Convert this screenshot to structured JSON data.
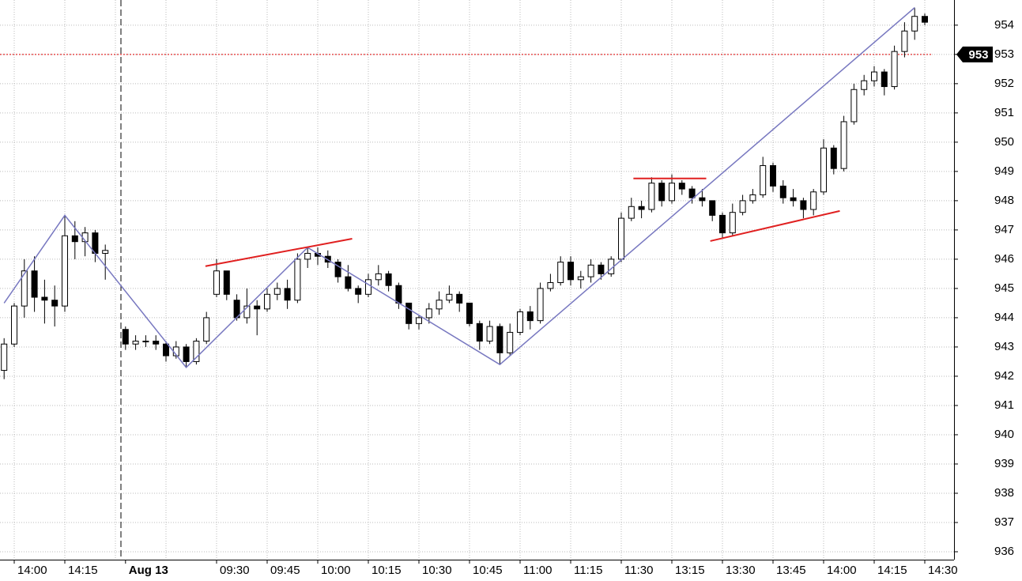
{
  "chart_data": {
    "type": "candlestick",
    "categories": [
      null,
      "14:00",
      null,
      null,
      null,
      null,
      "14:15",
      null,
      null,
      null,
      null,
      null,
      "Aug 13",
      null,
      null,
      null,
      null,
      null,
      null,
      null,
      null,
      "09:30",
      null,
      null,
      null,
      null,
      "09:45",
      null,
      null,
      null,
      null,
      "10:00",
      null,
      null,
      null,
      null,
      "10:15",
      null,
      null,
      null,
      null,
      "10:30",
      null,
      null,
      null,
      null,
      "10:45",
      null,
      null,
      null,
      null,
      "11:00",
      null,
      null,
      null,
      null,
      "11:15",
      null,
      null,
      null,
      null,
      "11:30",
      null,
      null,
      null,
      null,
      "13:15",
      null,
      null,
      null,
      null,
      "13:30",
      null,
      null,
      null,
      null,
      "13:45",
      null,
      null,
      null,
      null,
      "14:00",
      null,
      null,
      null,
      null,
      "14:15",
      null,
      null,
      null,
      null,
      "14:30"
    ],
    "open": [
      942.2,
      943.1,
      944.4,
      945.6,
      944.7,
      944.6,
      944.4,
      946.8,
      946.6,
      946.9,
      946.2,
      null,
      943.6,
      943.1,
      943.2,
      943.2,
      943.1,
      942.7,
      943.0,
      942.5,
      943.2,
      944.8,
      945.6,
      944.6,
      944.0,
      944.4,
      944.3,
      944.8,
      945.0,
      944.6,
      946.0,
      946.2,
      946.1,
      945.9,
      945.4,
      945.0,
      944.8,
      945.3,
      945.5,
      945.1,
      944.5,
      943.8,
      944.0,
      944.3,
      944.6,
      944.8,
      944.5,
      943.8,
      943.2,
      943.7,
      942.8,
      943.5,
      944.2,
      943.9,
      945.0,
      945.2,
      945.9,
      945.3,
      945.4,
      945.8,
      945.5,
      946.0,
      947.4,
      947.8,
      947.7,
      948.6,
      948.0,
      948.6,
      948.4,
      948.1,
      948.0,
      947.5,
      946.9,
      947.6,
      948.0,
      948.2,
      949.2,
      948.5,
      948.1,
      948.0,
      947.7,
      948.3,
      949.8,
      949.1,
      950.7,
      951.8,
      952.1,
      952.4,
      951.9,
      953.1,
      953.8,
      954.3
    ],
    "high": [
      943.3,
      944.5,
      946.0,
      946.1,
      945.3,
      945.1,
      947.5,
      947.3,
      947.1,
      947.0,
      946.5,
      null,
      943.7,
      943.4,
      943.4,
      943.4,
      943.2,
      943.2,
      943.1,
      943.3,
      944.2,
      946.0,
      945.6,
      944.8,
      945.0,
      944.6,
      945.0,
      945.2,
      945.3,
      946.2,
      946.4,
      946.4,
      946.3,
      946.0,
      945.8,
      945.1,
      945.5,
      945.8,
      945.6,
      945.2,
      944.5,
      944.1,
      944.5,
      944.9,
      945.1,
      944.9,
      944.5,
      943.9,
      943.9,
      943.8,
      943.8,
      944.3,
      944.4,
      945.2,
      945.5,
      946.1,
      946.1,
      945.6,
      946.0,
      945.9,
      946.1,
      947.6,
      948.1,
      948.0,
      948.8,
      948.7,
      948.9,
      948.7,
      948.5,
      948.4,
      948.0,
      947.6,
      947.9,
      948.2,
      948.4,
      949.5,
      949.3,
      948.7,
      948.4,
      948.1,
      948.4,
      950.1,
      949.9,
      950.9,
      952.0,
      952.3,
      952.6,
      952.5,
      953.3,
      954.1,
      954.6,
      954.4
    ],
    "low": [
      941.9,
      943.0,
      944.0,
      944.2,
      943.8,
      943.7,
      944.2,
      946.0,
      946.1,
      945.9,
      945.3,
      null,
      942.9,
      942.9,
      943.0,
      942.9,
      942.5,
      942.6,
      942.3,
      942.4,
      943.1,
      944.7,
      944.6,
      943.9,
      943.8,
      943.4,
      944.2,
      944.6,
      944.3,
      944.5,
      945.7,
      945.8,
      945.7,
      945.2,
      944.9,
      944.5,
      944.7,
      945.1,
      944.9,
      944.3,
      943.6,
      943.6,
      943.8,
      944.1,
      944.5,
      944.2,
      943.7,
      942.9,
      943.1,
      942.4,
      942.7,
      943.4,
      943.6,
      943.8,
      944.9,
      945.1,
      945.1,
      945.0,
      945.2,
      945.3,
      945.4,
      945.9,
      947.3,
      947.4,
      947.6,
      947.8,
      947.9,
      948.2,
      947.9,
      947.8,
      947.3,
      946.7,
      946.8,
      947.5,
      947.9,
      948.1,
      948.3,
      947.9,
      947.8,
      947.4,
      947.5,
      948.2,
      948.9,
      949.0,
      950.6,
      951.6,
      951.9,
      951.6,
      951.8,
      952.9,
      953.5,
      954.0
    ],
    "close": [
      943.1,
      944.4,
      945.6,
      944.7,
      944.6,
      944.4,
      946.8,
      946.6,
      946.9,
      946.2,
      946.3,
      null,
      943.1,
      943.2,
      943.2,
      943.1,
      942.7,
      943.0,
      942.5,
      943.2,
      944.0,
      945.6,
      944.8,
      944.0,
      944.4,
      944.3,
      944.8,
      945.0,
      944.6,
      946.0,
      946.2,
      946.1,
      945.9,
      945.4,
      945.0,
      944.8,
      945.3,
      945.5,
      945.1,
      944.5,
      943.8,
      944.0,
      944.3,
      944.6,
      944.8,
      944.5,
      943.8,
      943.2,
      943.7,
      942.8,
      943.5,
      944.2,
      943.9,
      945.0,
      945.2,
      945.9,
      945.3,
      945.4,
      945.8,
      945.5,
      946.0,
      947.4,
      947.8,
      947.7,
      948.6,
      948.0,
      948.6,
      948.4,
      948.1,
      948.0,
      947.5,
      946.9,
      947.6,
      948.0,
      948.2,
      949.2,
      948.5,
      948.1,
      948.0,
      947.7,
      948.3,
      949.8,
      949.1,
      950.7,
      951.8,
      952.1,
      952.4,
      951.9,
      953.1,
      953.8,
      954.3,
      954.1
    ],
    "up_color": "#ffffff",
    "down_color": "#000000",
    "ylim": [
      935.73,
      954.86
    ],
    "yticks": [
      936,
      937,
      938,
      939,
      940,
      941,
      942,
      943,
      944,
      945,
      946,
      947,
      948,
      949,
      950,
      951,
      952,
      953,
      954
    ],
    "grid": true,
    "zigzag": {
      "color": "#7878c0",
      "x": [
        0,
        6,
        18,
        30,
        49,
        90
      ],
      "values": [
        944.5,
        947.5,
        942.3,
        946.4,
        942.4,
        954.6
      ]
    },
    "trendlines": [
      {
        "color": "#e02020",
        "x": [
          19.9,
          34.4
        ],
        "values": [
          945.76,
          946.7
        ]
      },
      {
        "color": "#e02020",
        "x": [
          62.2,
          69.4
        ],
        "values": [
          948.76,
          948.76
        ]
      },
      {
        "color": "#e02020",
        "x": [
          69.8,
          82.6
        ],
        "values": [
          946.62,
          947.65
        ]
      }
    ],
    "last_price": {
      "value": 953,
      "color": "#e00000"
    }
  }
}
